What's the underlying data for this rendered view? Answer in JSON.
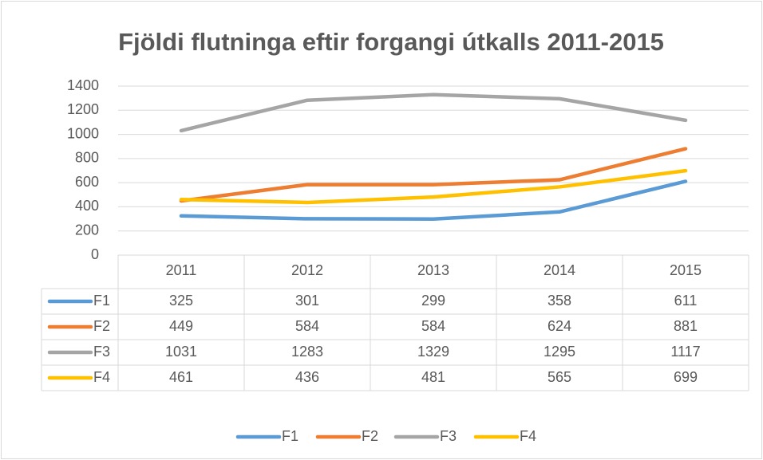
{
  "chart_data": {
    "type": "line",
    "title": "Fjöldi flutninga eftir forgangi útkalls 2011-2015",
    "categories": [
      "2011",
      "2012",
      "2013",
      "2014",
      "2015"
    ],
    "series": [
      {
        "name": "F1",
        "color": "#5b9bd5",
        "values": [
          325,
          301,
          299,
          358,
          611
        ]
      },
      {
        "name": "F2",
        "color": "#ed7d31",
        "values": [
          449,
          584,
          584,
          624,
          881
        ]
      },
      {
        "name": "F3",
        "color": "#a5a5a5",
        "values": [
          1031,
          1283,
          1329,
          1295,
          1117
        ]
      },
      {
        "name": "F4",
        "color": "#ffc000",
        "values": [
          461,
          436,
          481,
          565,
          699
        ]
      }
    ],
    "ylim": [
      0,
      1400
    ],
    "yticks": [
      0,
      200,
      400,
      600,
      800,
      1000,
      1200,
      1400
    ],
    "grid": true,
    "legend": "bottom",
    "data_table": true
  }
}
